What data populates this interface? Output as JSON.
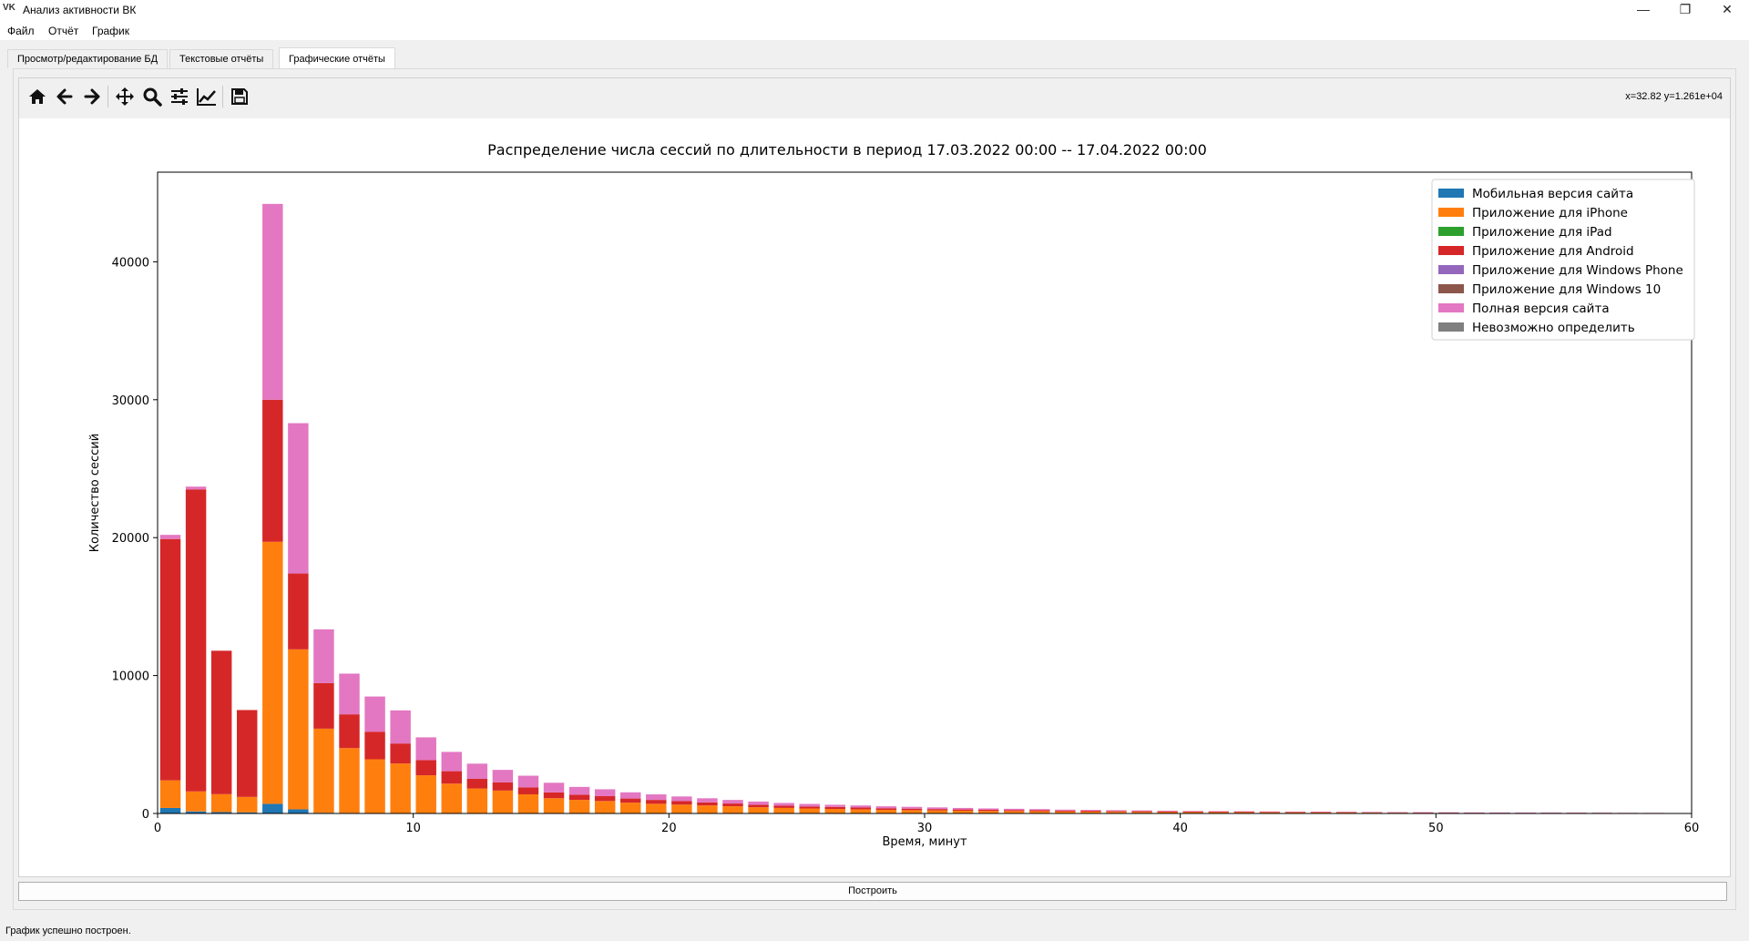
{
  "window": {
    "title": "Анализ активности ВК",
    "app_icon": "vk-logo",
    "controls": [
      "minimize-icon",
      "restore-icon",
      "close-icon"
    ]
  },
  "menu": [
    "Файл",
    "Отчёт",
    "График"
  ],
  "tabs": [
    {
      "label": "Просмотр/редактирование БД",
      "active": false
    },
    {
      "label": "Текстовые отчёты",
      "active": false
    },
    {
      "label": "Графические отчёты",
      "active": true
    }
  ],
  "toolbar": {
    "buttons": [
      "home-icon",
      "back-icon",
      "forward-icon",
      "pan-icon",
      "zoom-icon",
      "configure-subplots-icon",
      "edit-axes-icon",
      "save-icon"
    ],
    "coords": "x=32.82 y=1.261e+04"
  },
  "build_button": "Построить",
  "status": "График успешно построен.",
  "chart_data": {
    "type": "bar",
    "stacked": true,
    "title": "Распределение числа сессий по длительности в период 17.03.2022 00:00 -- 17.04.2022 00:00",
    "xlabel": "Время, минут",
    "ylabel": "Количество сессий",
    "xlim": [
      0,
      60
    ],
    "ylim": [
      0,
      46500
    ],
    "xticks": [
      0,
      10,
      20,
      30,
      40,
      50,
      60
    ],
    "yticks": [
      0,
      10000,
      20000,
      30000,
      40000
    ],
    "grid": false,
    "legend_position": "top-right",
    "x": [
      0,
      1,
      2,
      3,
      4,
      5,
      6,
      7,
      8,
      9,
      10,
      11,
      12,
      13,
      14,
      15,
      16,
      17,
      18,
      19,
      20,
      21,
      22,
      23,
      24,
      25,
      26,
      27,
      28,
      29,
      30,
      31,
      32,
      33,
      34,
      35,
      36,
      37,
      38,
      39,
      40,
      41,
      42,
      43,
      44,
      45,
      46,
      47,
      48,
      49,
      50,
      51,
      52,
      53,
      54,
      55,
      56,
      57,
      58,
      59
    ],
    "series": [
      {
        "name": "Мобильная версия сайта",
        "color": "#1f77b4",
        "values": [
          400,
          150,
          100,
          80,
          700,
          300,
          50,
          40,
          30,
          25,
          20,
          15,
          12,
          10,
          8,
          6,
          5,
          4,
          4,
          3,
          3,
          2,
          2,
          2,
          2,
          1,
          1,
          1,
          1,
          1,
          1,
          1,
          1,
          1,
          1,
          0,
          0,
          0,
          0,
          0,
          0,
          0,
          0,
          0,
          0,
          0,
          0,
          0,
          0,
          0,
          0,
          0,
          0,
          0,
          0,
          0,
          0,
          0,
          0,
          0
        ]
      },
      {
        "name": "Приложение для iPhone",
        "color": "#ff7f0e",
        "values": [
          2000,
          1450,
          1300,
          1120,
          19000,
          11600,
          6100,
          4700,
          3900,
          3600,
          2750,
          2150,
          1800,
          1650,
          1380,
          1100,
          980,
          900,
          780,
          700,
          640,
          580,
          520,
          450,
          400,
          360,
          330,
          300,
          260,
          240,
          220,
          200,
          180,
          170,
          160,
          140,
          130,
          120,
          110,
          100,
          95,
          90,
          85,
          80,
          75,
          70,
          65,
          60,
          55,
          50,
          45,
          40,
          40,
          35,
          35,
          30,
          30,
          25,
          25,
          20
        ]
      },
      {
        "name": "Приложение для iPad",
        "color": "#2ca02c",
        "values": [
          0,
          0,
          0,
          0,
          0,
          0,
          0,
          0,
          0,
          0,
          0,
          0,
          0,
          0,
          0,
          0,
          0,
          0,
          0,
          0,
          0,
          0,
          0,
          0,
          0,
          0,
          0,
          0,
          0,
          0,
          0,
          0,
          0,
          0,
          0,
          0,
          0,
          0,
          0,
          0,
          0,
          0,
          0,
          0,
          0,
          0,
          0,
          0,
          0,
          0,
          0,
          0,
          0,
          0,
          0,
          0,
          0,
          0,
          0,
          0
        ]
      },
      {
        "name": "Приложение для Android",
        "color": "#d62728",
        "values": [
          17500,
          21900,
          10400,
          6300,
          10300,
          5500,
          3300,
          2450,
          2000,
          1450,
          1100,
          900,
          700,
          600,
          500,
          420,
          380,
          350,
          300,
          280,
          250,
          220,
          200,
          180,
          160,
          150,
          140,
          130,
          120,
          110,
          100,
          90,
          85,
          80,
          75,
          70,
          65,
          60,
          58,
          55,
          52,
          50,
          48,
          45,
          42,
          40,
          38,
          35,
          32,
          30,
          28,
          26,
          24,
          22,
          20,
          18,
          16,
          14,
          12,
          10
        ]
      },
      {
        "name": "Приложение для Windows Phone",
        "color": "#9467bd",
        "values": [
          0,
          0,
          0,
          0,
          0,
          0,
          0,
          0,
          0,
          0,
          0,
          0,
          0,
          0,
          0,
          0,
          0,
          0,
          0,
          0,
          0,
          0,
          0,
          0,
          0,
          0,
          0,
          0,
          0,
          0,
          0,
          0,
          0,
          0,
          0,
          0,
          0,
          0,
          0,
          0,
          0,
          0,
          0,
          0,
          0,
          0,
          0,
          0,
          0,
          0,
          0,
          0,
          0,
          0,
          0,
          0,
          0,
          0,
          0,
          0
        ]
      },
      {
        "name": "Приложение для Windows 10",
        "color": "#8c564b",
        "values": [
          0,
          0,
          0,
          0,
          0,
          0,
          0,
          0,
          0,
          0,
          0,
          0,
          0,
          0,
          0,
          0,
          0,
          0,
          0,
          0,
          0,
          0,
          0,
          0,
          0,
          0,
          0,
          0,
          0,
          0,
          0,
          0,
          0,
          0,
          0,
          0,
          0,
          0,
          0,
          0,
          0,
          0,
          0,
          0,
          0,
          0,
          0,
          0,
          0,
          0,
          0,
          0,
          0,
          0,
          0,
          0,
          0,
          0,
          0,
          0
        ]
      },
      {
        "name": "Полная версия сайта",
        "color": "#e377c2",
        "values": [
          300,
          200,
          0,
          0,
          14200,
          10900,
          3900,
          2950,
          2550,
          2400,
          1650,
          1400,
          1100,
          900,
          850,
          700,
          560,
          500,
          450,
          400,
          340,
          300,
          260,
          230,
          200,
          180,
          160,
          150,
          140,
          130,
          120,
          110,
          100,
          90,
          80,
          70,
          60,
          55,
          50,
          45,
          40,
          35,
          30,
          25,
          20,
          18,
          16,
          14,
          12,
          10,
          8,
          6,
          5,
          4,
          3,
          2,
          2,
          1,
          1,
          1
        ]
      },
      {
        "name": "Невозможно определить",
        "color": "#7f7f7f",
        "values": [
          0,
          0,
          0,
          0,
          0,
          0,
          0,
          0,
          0,
          0,
          0,
          0,
          0,
          0,
          0,
          0,
          0,
          0,
          0,
          0,
          0,
          0,
          0,
          0,
          0,
          0,
          0,
          0,
          0,
          0,
          0,
          0,
          0,
          0,
          0,
          0,
          0,
          0,
          0,
          0,
          0,
          0,
          0,
          0,
          0,
          0,
          0,
          0,
          0,
          0,
          0,
          0,
          0,
          0,
          0,
          0,
          0,
          0,
          0,
          0
        ]
      }
    ]
  }
}
